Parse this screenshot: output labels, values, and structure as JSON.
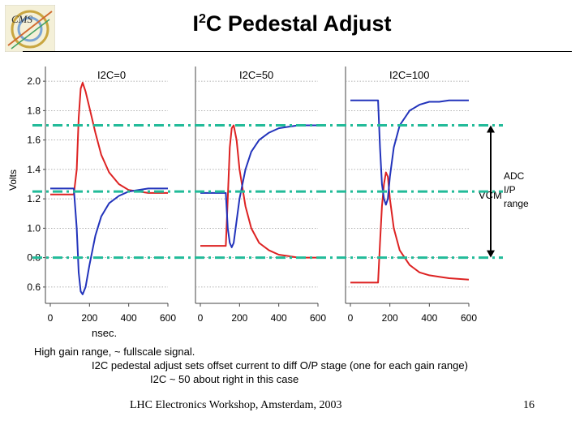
{
  "slide": {
    "title_main": "I",
    "title_sup": "2",
    "title_rest": "C Pedestal Adjust",
    "caption_lines": [
      "High gain range, ~ fullscale signal.",
      "I2C pedestal adjust sets offset current to diff O/P stage (one for each gain range)",
      "I2C ~ 50 about right in this case"
    ],
    "footer": "LHC Electronics Workshop, Amsterdam, 2003",
    "page_number": "16",
    "logo_text": "CMS",
    "logo_icon": "cms-logo-icon"
  },
  "chart_data": {
    "type": "line",
    "ylabel": "Volts",
    "xlabel": "nsec.",
    "ylim": [
      0.5,
      2.1
    ],
    "y_ticks": [
      0.6,
      0.8,
      1.0,
      1.2,
      1.4,
      1.6,
      1.8,
      2.0
    ],
    "xlim": [
      0,
      600
    ],
    "x_ticks": [
      0,
      200,
      400,
      600
    ],
    "grid": true,
    "colors": {
      "series_a": "#dd2222",
      "series_b": "#2233bb",
      "reference": "#22bb99"
    },
    "panels": [
      {
        "label": "I2C=0",
        "series": [
          {
            "color": "#dd2222",
            "x": [
              0,
              120,
              135,
              145,
              155,
              165,
              180,
              200,
              230,
              260,
              300,
              350,
              400,
              450,
              500,
              600
            ],
            "y": [
              1.23,
              1.23,
              1.4,
              1.75,
              1.95,
              1.99,
              1.93,
              1.82,
              1.65,
              1.5,
              1.38,
              1.3,
              1.26,
              1.25,
              1.24,
              1.24
            ]
          },
          {
            "color": "#2233bb",
            "x": [
              0,
              120,
              135,
              145,
              155,
              165,
              180,
              200,
              230,
              260,
              300,
              350,
              400,
              450,
              500,
              600
            ],
            "y": [
              1.27,
              1.27,
              1.0,
              0.7,
              0.57,
              0.55,
              0.6,
              0.75,
              0.95,
              1.08,
              1.17,
              1.22,
              1.25,
              1.26,
              1.27,
              1.27
            ]
          }
        ]
      },
      {
        "label": "I2C=50",
        "series": [
          {
            "color": "#dd2222",
            "x": [
              0,
              115,
              130,
              140,
              150,
              160,
              170,
              185,
              200,
              230,
              260,
              300,
              350,
              400,
              450,
              500,
              600
            ],
            "y": [
              0.88,
              0.88,
              0.88,
              1.2,
              1.55,
              1.68,
              1.7,
              1.6,
              1.4,
              1.15,
              1.0,
              0.9,
              0.85,
              0.82,
              0.81,
              0.8,
              0.8
            ]
          },
          {
            "color": "#2233bb",
            "x": [
              0,
              115,
              130,
              140,
              150,
              160,
              170,
              185,
              200,
              230,
              260,
              300,
              350,
              400,
              450,
              500,
              600
            ],
            "y": [
              1.24,
              1.24,
              1.24,
              1.0,
              0.9,
              0.87,
              0.9,
              1.05,
              1.2,
              1.4,
              1.52,
              1.6,
              1.65,
              1.68,
              1.69,
              1.7,
              1.7
            ]
          }
        ]
      },
      {
        "label": "I2C=100",
        "series": [
          {
            "color": "#dd2222",
            "x": [
              0,
              120,
              140,
              150,
              160,
              170,
              180,
              190,
              200,
              220,
              250,
              300,
              350,
              400,
              450,
              500,
              600
            ],
            "y": [
              0.63,
              0.63,
              0.63,
              0.9,
              1.15,
              1.3,
              1.38,
              1.35,
              1.2,
              1.0,
              0.85,
              0.75,
              0.7,
              0.68,
              0.67,
              0.66,
              0.65
            ]
          },
          {
            "color": "#2233bb",
            "x": [
              0,
              120,
              140,
              150,
              160,
              170,
              180,
              190,
              200,
              220,
              250,
              300,
              350,
              400,
              450,
              500,
              600
            ],
            "y": [
              1.87,
              1.87,
              1.87,
              1.55,
              1.3,
              1.2,
              1.16,
              1.2,
              1.35,
              1.55,
              1.7,
              1.8,
              1.84,
              1.86,
              1.86,
              1.87,
              1.87
            ]
          }
        ]
      }
    ],
    "reference_lines": [
      1.7,
      1.25,
      0.8
    ],
    "annotations": {
      "vcm_label": "VCM",
      "range_label_lines": [
        "ADC",
        "I/P",
        "range"
      ]
    }
  }
}
